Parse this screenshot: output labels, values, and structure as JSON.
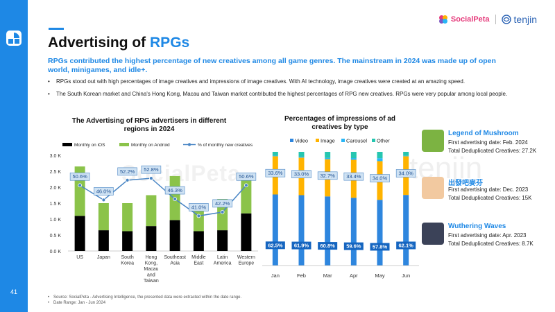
{
  "page_number": "41",
  "title_prefix": "Advertising of ",
  "title_highlight": "RPGs",
  "brands": {
    "left": "SocialPeta",
    "right": "tenjin"
  },
  "subtitle": "RPGs contributed the highest percentage of new creatives among all game genres. The mainstream in 2024 was made up of open world, minigames, and idle+.",
  "bullets": [
    "RPGs stood out with high percentages of image creatives and impressions of image creatives. With AI technology, image creatives were created at an amazing speed.",
    "The South Korean market and China's Hong Kong, Macau and Taiwan market contributed the highest percentages of RPG new creatives. RPGs were very popular among local people."
  ],
  "chart_data": [
    {
      "type": "bar",
      "title": "The Advertising of RPG advertisers in different regions in 2024",
      "categories": [
        "US",
        "Japan",
        "South Korea",
        "Hong Kong, Macau and Taiwan",
        "Southeast Asia",
        "Middle East",
        "Latin America",
        "Western Europe"
      ],
      "category_lines": [
        [
          "US"
        ],
        [
          "Japan"
        ],
        [
          "South",
          "Korea"
        ],
        [
          "Hong",
          "Kong,",
          "Macau",
          "and",
          "Taiwan"
        ],
        [
          "Southeast",
          "Asia"
        ],
        [
          "Middle",
          "East"
        ],
        [
          "Latin",
          "America"
        ],
        [
          "Western",
          "Europe"
        ]
      ],
      "series": [
        {
          "name": "Monthly on iOS",
          "color": "#000000",
          "values": [
            1.1,
            0.65,
            0.62,
            0.78,
            0.97,
            0.62,
            0.65,
            1.18
          ]
        },
        {
          "name": "Monthly on Android",
          "color": "#8bc34a",
          "values": [
            1.55,
            0.85,
            0.88,
            0.97,
            1.38,
            0.82,
            0.98,
            1.25
          ]
        },
        {
          "name": "% of monthly new creatives",
          "color": "#4a86c5",
          "type": "line",
          "values": [
            50.6,
            46.0,
            52.2,
            52.8,
            46.3,
            41.0,
            42.2,
            50.6
          ],
          "labels": [
            "50.6%",
            "46.0%",
            "52.2%",
            "52.8%",
            "46.3%",
            "41.0%",
            "42.2%",
            "50.6%"
          ]
        }
      ],
      "yticks": [
        "0.0 K",
        "0.5 K",
        "1.0 K",
        "1.5 K",
        "2.0 K",
        "2.5 K",
        "3.0 K"
      ],
      "ylim": [
        0,
        3.0
      ],
      "legend": "top"
    },
    {
      "type": "bar",
      "stacked": true,
      "title": "Percentages of impressions of ad creatives by type",
      "categories": [
        "Jan",
        "Feb",
        "Mar",
        "Apr",
        "May",
        "Jun"
      ],
      "series": [
        {
          "name": "Video",
          "color": "#2e86de",
          "values": [
            62.5,
            61.9,
            60.8,
            59.6,
            57.8,
            62.1
          ],
          "labels": [
            "62.5%",
            "61.9%",
            "60.8%",
            "59.6%",
            "57.8%",
            "62.1%"
          ]
        },
        {
          "name": "Image",
          "color": "#ffb300",
          "values": [
            33.6,
            33.0,
            32.7,
            33.4,
            34.0,
            34.0
          ],
          "labels": [
            "33.6%",
            "33.0%",
            "32.7%",
            "33.4%",
            "34.0%",
            "34.0%"
          ]
        },
        {
          "name": "Carousel",
          "color": "#29b6f6",
          "values": [
            0.5,
            0.7,
            1.1,
            1.5,
            2.6,
            0.4
          ]
        },
        {
          "name": "Other",
          "color": "#26c6b0",
          "values": [
            3.4,
            4.4,
            5.4,
            5.5,
            5.6,
            3.5
          ]
        }
      ],
      "ylim": [
        0,
        100
      ],
      "legend": "top"
    }
  ],
  "games": [
    {
      "name": "Legend of Mushroom",
      "date": "First advertising date: Feb. 2024",
      "total": "Total Deduplicated Creatives: 27.2K",
      "icon_color": "#7cb342"
    },
    {
      "name": "出發吧麥芬",
      "date": "First advertising date: Dec. 2023",
      "total": "Total Deduplicated Creatives: 15K",
      "icon_color": "#f2c9a0"
    },
    {
      "name": "Wuthering Waves",
      "date": "First advertising date: Apr. 2023",
      "total": "Total Deduplicated Creatives: 8.7K",
      "icon_color": "#3b4258"
    }
  ],
  "footer": [
    "Source: SocialPeta - Advertising Intelligence, the presented data were extracted within the date range.",
    "Date Range: Jan - Jun 2024"
  ]
}
